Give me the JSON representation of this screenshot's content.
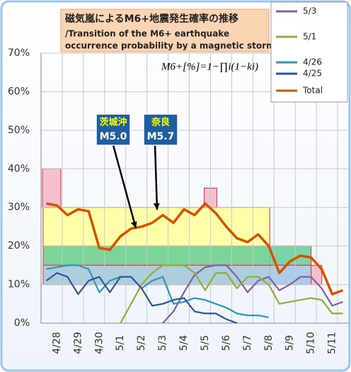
{
  "chart_data": {
    "type": "line",
    "title": "磁気嵐によるM6+地震発生確率の推移",
    "subtitle": [
      "/Transition of the M6+ earthquake",
      "occurrence probability by a magnetic storm."
    ],
    "formula": "M6+[%]=1−∏i(1−ki)",
    "categories": [
      null,
      "4/28",
      null,
      "4/29",
      null,
      "4/30",
      null,
      "5/1",
      null,
      "5/2",
      null,
      "5/3",
      null,
      "5/4",
      null,
      "5/5",
      null,
      "5/6",
      null,
      "5/7",
      null,
      "5/8",
      null,
      "5/9",
      null,
      "5/10",
      null,
      "5/11",
      null
    ],
    "ylim": [
      0,
      70
    ],
    "yticks": [
      {
        "value": 0,
        "label": "0%"
      },
      {
        "value": 10,
        "label": "10%"
      },
      {
        "value": 20,
        "label": "20%"
      },
      {
        "value": 30,
        "label": "30%"
      },
      {
        "value": 40,
        "label": "40%"
      },
      {
        "value": 50,
        "label": "50%"
      },
      {
        "value": 60,
        "label": "60%"
      },
      {
        "value": 70,
        "label": "70%"
      }
    ],
    "grid": true,
    "legend": "top-right",
    "series": [
      {
        "name": "5/3",
        "color": "#7f5fa0",
        "values": [
          null,
          null,
          null,
          null,
          null,
          null,
          null,
          null,
          null,
          null,
          null,
          0,
          3,
          8,
          12.5,
          14.5,
          15,
          15,
          12,
          8,
          11,
          12,
          8.5,
          10,
          12,
          12,
          9,
          4.5,
          5.5
        ]
      },
      {
        "name": "5/1",
        "color": "#8fad3a",
        "values": [
          null,
          null,
          null,
          null,
          null,
          null,
          null,
          0,
          5,
          10,
          13,
          15,
          15,
          15,
          13,
          8.5,
          13,
          13,
          9,
          12,
          12,
          10,
          5,
          5.5,
          6,
          6.5,
          6,
          2.5,
          2.5
        ]
      },
      {
        "name": "4/26",
        "color": "#2e96b6",
        "values": [
          14,
          14.5,
          15,
          15,
          14,
          8,
          11,
          12,
          12,
          9,
          11,
          12,
          5,
          5.5,
          6.5,
          6,
          5,
          4,
          2.5,
          2,
          2,
          1.5,
          null,
          null,
          null,
          null,
          null,
          null,
          null
        ]
      },
      {
        "name": "4/25",
        "color": "#2f5597",
        "values": [
          11,
          13,
          12,
          7.5,
          11,
          12,
          8,
          12,
          12,
          9,
          4.5,
          5,
          6,
          6.5,
          3,
          2.5,
          2.5,
          1,
          0,
          null,
          null,
          null,
          null,
          null,
          null,
          null,
          null,
          null,
          null
        ]
      },
      {
        "name": "Total",
        "color": "#d35400",
        "values": [
          31,
          30.5,
          28,
          29.5,
          29,
          19.5,
          19,
          22.5,
          24.5,
          25,
          26,
          28,
          26,
          29.5,
          28,
          31,
          28.5,
          25,
          22,
          21,
          23,
          20,
          13,
          16,
          17.5,
          17,
          14,
          7.5,
          8.5
        ]
      }
    ],
    "ranges": [
      {
        "start": 0.2,
        "end": 21.6,
        "low": 10,
        "high": 30,
        "color": "#ffff99"
      },
      {
        "start": 0.2,
        "end": 25.5,
        "low": 15,
        "high": 20,
        "color": "#66cc99"
      },
      {
        "start": 0.2,
        "end": 25.5,
        "low": 10,
        "high": 15,
        "color": "#9fc5e8"
      },
      {
        "start": 25.5,
        "end": 26.5,
        "low": 10,
        "high": 15,
        "color": "#f4b6c2"
      },
      {
        "start": 0.13,
        "end": 1.87,
        "low": 30,
        "high": 40,
        "color": "#f4b6c2"
      },
      {
        "start": 15.4,
        "end": 16.6,
        "low": 30,
        "high": 35,
        "color": "#f4b6c2"
      }
    ],
    "annotations": [
      {
        "lines": [
          "茨城沖",
          "M5.0"
        ]
      },
      {
        "lines": [
          "奈良",
          "M5.7"
        ]
      }
    ]
  }
}
